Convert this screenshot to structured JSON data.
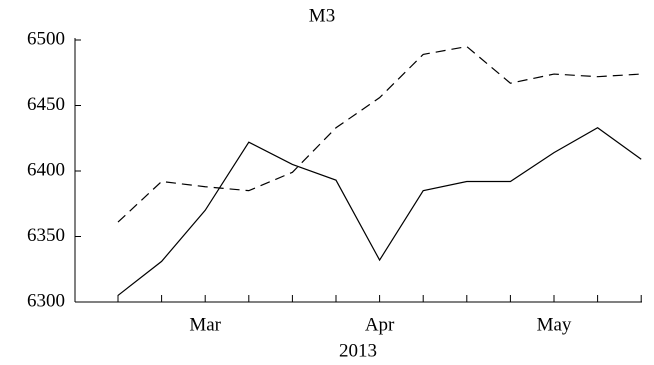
{
  "chart_data": {
    "type": "line",
    "title": "M3",
    "xlabel": "2013",
    "categories": [
      null,
      null,
      "Mar",
      null,
      null,
      null,
      "Apr",
      null,
      null,
      null,
      "May",
      null,
      null
    ],
    "series": [
      {
        "color": "#000000",
        "dash": "solid",
        "values": [
          6305,
          6331,
          6370,
          6422,
          6405,
          6393,
          6332,
          6385,
          6392,
          6392,
          6414,
          6433,
          6409
        ]
      },
      {
        "color": "#000000",
        "dash": "dashed",
        "values": [
          6361,
          6392,
          6388,
          6385,
          6399,
          6433,
          6456,
          6489,
          6495,
          6467,
          6474,
          6472,
          6474
        ]
      }
    ],
    "ylim": [
      6300,
      6500
    ],
    "yticks": [
      6300,
      6350,
      6400,
      6450,
      6500
    ],
    "grid": false
  }
}
